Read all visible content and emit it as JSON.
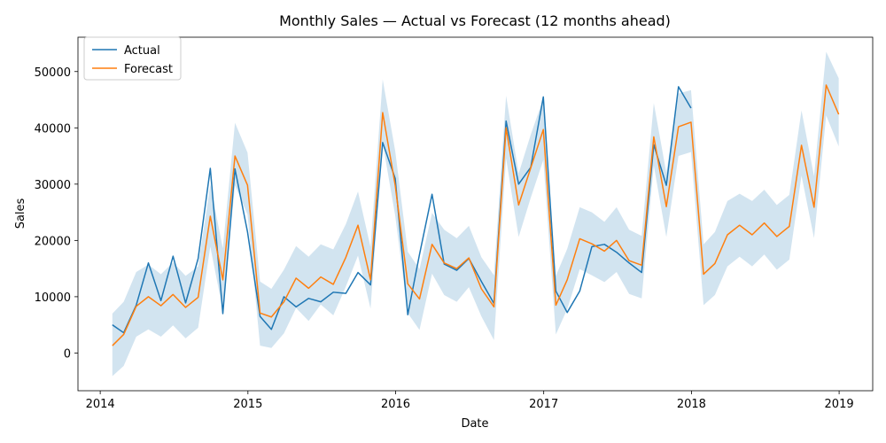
{
  "colors": {
    "actual": "#1f77b4",
    "forecast": "#ff7f0e",
    "band": "#1f77b4",
    "axes": "#000000",
    "background": "#ffffff"
  },
  "chart_data": {
    "type": "line",
    "title": "Monthly Sales — Actual vs Forecast (12 months ahead)",
    "xlabel": "Date",
    "ylabel": "Sales",
    "xlim": [
      "2013-11-07",
      "2019-03-25"
    ],
    "ylim": [
      -6700,
      56100
    ],
    "x_ticks": [
      "2014-01-01",
      "2015-01-01",
      "2016-01-01",
      "2017-01-01",
      "2018-01-01",
      "2019-01-01"
    ],
    "x_tick_labels": [
      "2014",
      "2015",
      "2016",
      "2017",
      "2018",
      "2019"
    ],
    "y_ticks": [
      0,
      10000,
      20000,
      30000,
      40000,
      50000
    ],
    "y_tick_labels": [
      "0",
      "10000",
      "20000",
      "30000",
      "40000",
      "50000"
    ],
    "grid": false,
    "legend_position": "top-left",
    "x": [
      "2014-01-31",
      "2014-02-28",
      "2014-03-31",
      "2014-04-30",
      "2014-05-31",
      "2014-06-30",
      "2014-07-31",
      "2014-08-31",
      "2014-09-30",
      "2014-10-31",
      "2014-11-30",
      "2014-12-31",
      "2015-01-31",
      "2015-02-28",
      "2015-03-31",
      "2015-04-30",
      "2015-05-31",
      "2015-06-30",
      "2015-07-31",
      "2015-08-31",
      "2015-09-30",
      "2015-10-31",
      "2015-11-30",
      "2015-12-31",
      "2016-01-31",
      "2016-02-29",
      "2016-03-31",
      "2016-04-30",
      "2016-05-31",
      "2016-06-30",
      "2016-07-31",
      "2016-08-31",
      "2016-09-30",
      "2016-10-31",
      "2016-11-30",
      "2016-12-31",
      "2017-01-31",
      "2017-02-28",
      "2017-03-31",
      "2017-04-30",
      "2017-05-31",
      "2017-06-30",
      "2017-07-31",
      "2017-08-31",
      "2017-09-30",
      "2017-10-31",
      "2017-11-30",
      "2017-12-31",
      "2018-01-31",
      "2018-02-28",
      "2018-03-31",
      "2018-04-30",
      "2018-05-31",
      "2018-06-30",
      "2018-07-31",
      "2018-08-31",
      "2018-09-30",
      "2018-10-31",
      "2018-11-30",
      "2018-12-31"
    ],
    "series": [
      {
        "name": "Actual",
        "values": [
          5000,
          3600,
          8500,
          16000,
          9300,
          17200,
          8900,
          16800,
          32800,
          7000,
          32700,
          21500,
          6500,
          4200,
          10000,
          8200,
          9700,
          9100,
          10800,
          10600,
          14300,
          12100,
          37400,
          31000,
          6800,
          17500,
          28200,
          15800,
          14700,
          16800,
          12700,
          8800,
          41200,
          30000,
          33000,
          45500,
          11000,
          7200,
          11000,
          18900,
          19300,
          17900,
          16000,
          14300,
          37000,
          29800,
          47300,
          43500,
          null,
          null,
          null,
          null,
          null,
          null,
          null,
          null,
          null,
          null,
          null,
          null
        ]
      },
      {
        "name": "Forecast",
        "values": [
          1300,
          3300,
          8300,
          10000,
          8400,
          10400,
          8100,
          9900,
          24300,
          13000,
          35000,
          29800,
          7100,
          6400,
          9100,
          13300,
          11500,
          13500,
          12200,
          17000,
          22700,
          13000,
          42700,
          29800,
          12300,
          9600,
          19300,
          16000,
          15000,
          16900,
          11400,
          8200,
          40000,
          26300,
          32900,
          39700,
          8500,
          13000,
          20300,
          19400,
          18100,
          20000,
          16400,
          15600,
          38400,
          26000,
          40200,
          41000,
          14000,
          15900,
          21000,
          22700,
          21000,
          23100,
          20700,
          22500,
          36900,
          25900,
          47600,
          42400
        ]
      }
    ],
    "band": {
      "lower": [
        -4100,
        -2300,
        2900,
        4200,
        2900,
        4900,
        2600,
        4500,
        18900,
        7600,
        29800,
        24600,
        1300,
        900,
        3500,
        8000,
        5700,
        8600,
        6700,
        11800,
        17300,
        7900,
        37300,
        24400,
        7100,
        4100,
        14100,
        10300,
        9100,
        11700,
        6500,
        2300,
        34600,
        20600,
        27600,
        34300,
        3300,
        7800,
        14900,
        13800,
        12600,
        14400,
        10500,
        9700,
        33300,
        20600,
        35000,
        35700,
        8500,
        10300,
        15400,
        17100,
        15400,
        17500,
        14800,
        16600,
        31500,
        20400,
        42200,
        36700
      ],
      "upper": [
        7000,
        9100,
        14400,
        15700,
        14000,
        16100,
        13700,
        15400,
        29900,
        18600,
        40900,
        35600,
        12700,
        11400,
        14800,
        19000,
        17100,
        19300,
        18400,
        22900,
        28700,
        18800,
        48600,
        35900,
        18000,
        14900,
        24900,
        21900,
        20400,
        22600,
        17000,
        13800,
        45700,
        31900,
        38800,
        45200,
        13700,
        18500,
        25900,
        25000,
        23300,
        25900,
        21900,
        20800,
        44400,
        32000,
        46100,
        46700,
        19300,
        21500,
        27000,
        28300,
        27000,
        29000,
        26300,
        28100,
        43100,
        31400,
        53500,
        48800
      ]
    }
  }
}
